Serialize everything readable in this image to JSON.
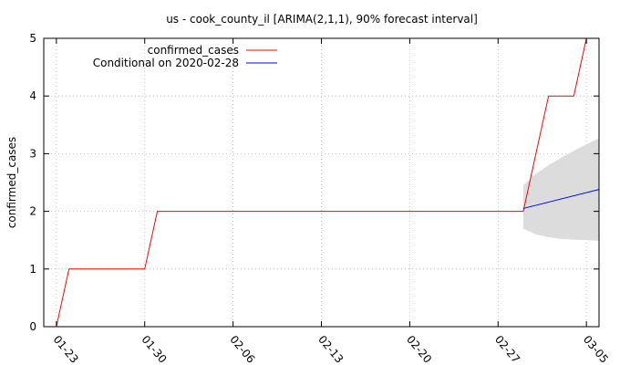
{
  "chart_data": {
    "type": "line",
    "title": "us - cook_county_il [ARIMA(2,1,1), 90% forecast interval]",
    "xlabel": "",
    "ylabel": "confirmed_cases",
    "x_start": "2020-01-22",
    "x_end": "2020-03-06",
    "x_ticks": [
      {
        "date": "2020-01-23",
        "label": "01-23"
      },
      {
        "date": "2020-01-30",
        "label": "01-30"
      },
      {
        "date": "2020-02-06",
        "label": "02-06"
      },
      {
        "date": "2020-02-13",
        "label": "02-13"
      },
      {
        "date": "2020-02-20",
        "label": "02-20"
      },
      {
        "date": "2020-02-27",
        "label": "02-27"
      },
      {
        "date": "2020-03-05",
        "label": "03-05"
      }
    ],
    "ylim": [
      0,
      5
    ],
    "y_ticks": [
      0,
      1,
      2,
      3,
      4,
      5
    ],
    "grid": true,
    "legend_position": "top-left",
    "series": [
      {
        "name": "confirmed_cases",
        "color": "#ff0000",
        "points": [
          {
            "x": "2020-01-22",
            "y": -0.3
          },
          {
            "x": "2020-01-23",
            "y": 0
          },
          {
            "x": "2020-01-24",
            "y": 1
          },
          {
            "x": "2020-01-30",
            "y": 1
          },
          {
            "x": "2020-01-31",
            "y": 2
          },
          {
            "x": "2020-02-29",
            "y": 2
          },
          {
            "x": "2020-03-02",
            "y": 4
          },
          {
            "x": "2020-03-04",
            "y": 4
          },
          {
            "x": "2020-03-05",
            "y": 5
          },
          {
            "x": "2020-03-05.3",
            "y": 5.4
          }
        ]
      },
      {
        "name": "Conditional on 2020-02-28",
        "color": "#0000ff",
        "points": [
          {
            "x": "2020-02-29",
            "y": 2.05
          },
          {
            "x": "2020-03-06",
            "y": 2.38
          }
        ]
      }
    ],
    "forecast_interval": {
      "color": "#dcdcdc",
      "x": [
        "2020-02-29",
        "2020-03-01",
        "2020-03-02",
        "2020-03-03",
        "2020-03-04",
        "2020-03-05",
        "2020-03-06"
      ],
      "upper": [
        2.45,
        2.65,
        2.8,
        2.93,
        3.05,
        3.16,
        3.27
      ],
      "lower": [
        1.7,
        1.6,
        1.55,
        1.52,
        1.51,
        1.5,
        1.49
      ]
    }
  }
}
